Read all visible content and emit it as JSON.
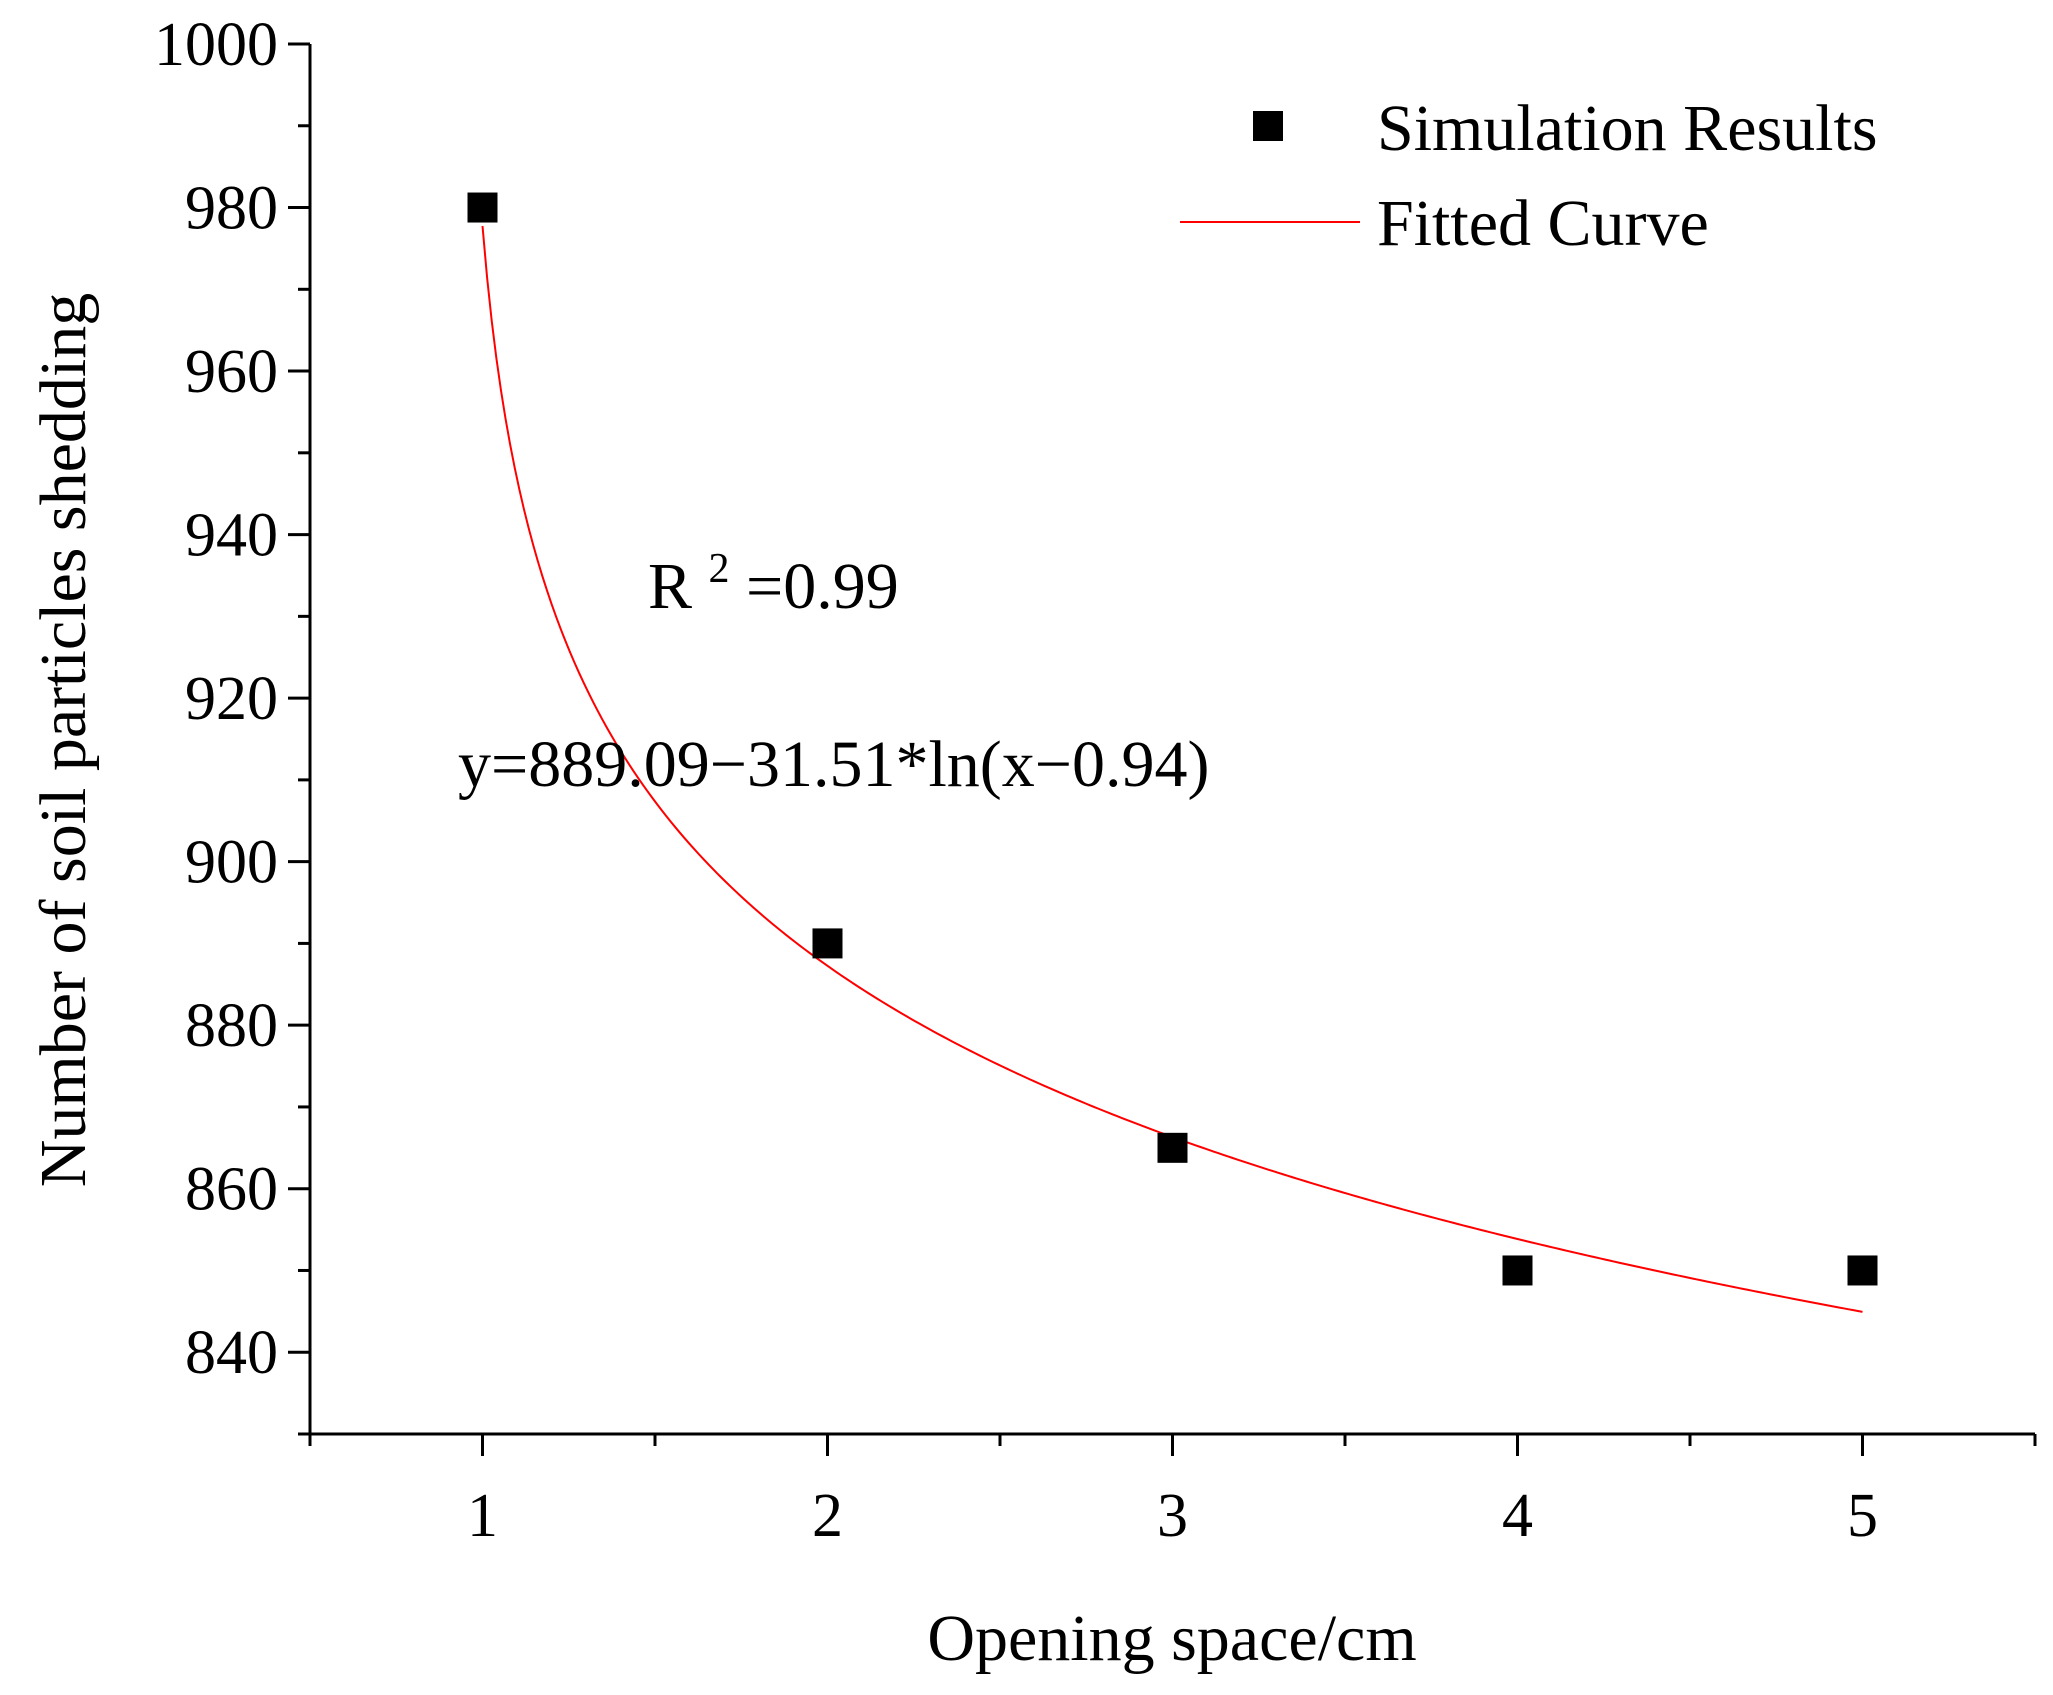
{
  "chart_data": {
    "type": "scatter",
    "title": "",
    "xlabel": "Opening space/cm",
    "ylabel": "Number of soil particles shedding",
    "xlim": [
      0.5,
      5.5
    ],
    "ylim": [
      830,
      1000
    ],
    "x_ticks": [
      "1",
      "2",
      "3",
      "4",
      "5"
    ],
    "y_ticks": [
      "840",
      "860",
      "880",
      "900",
      "920",
      "940",
      "960",
      "980",
      "1000"
    ],
    "series": [
      {
        "name": "Simulation Results",
        "kind": "scatter",
        "marker": "square",
        "color": "#000000",
        "x": [
          1,
          2,
          3,
          4,
          5
        ],
        "y": [
          980,
          890,
          865,
          850,
          850
        ]
      },
      {
        "name": "Fitted Curve",
        "kind": "line",
        "color": "#ff0000",
        "equation": {
          "a": 889.09,
          "b": 31.51,
          "c": 0.94
        },
        "x_range": [
          1,
          5
        ]
      }
    ],
    "annotations": {
      "r2_prefix": "R",
      "r2_sup": "2",
      "r2_value": "=0.99",
      "equation_text": "y=889.09−31.51*ln(x−0.94)"
    },
    "legend": {
      "position": "top-right",
      "items": [
        "Simulation Results",
        "Fitted Curve"
      ]
    }
  }
}
